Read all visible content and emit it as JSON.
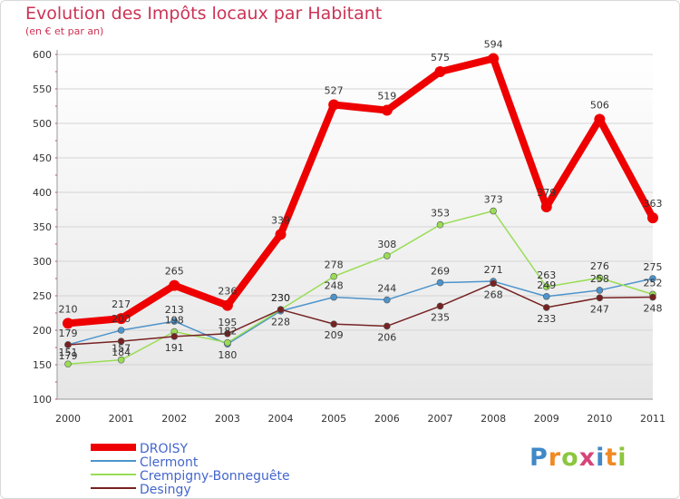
{
  "header": {
    "title": "Evolution des Impôts locaux par Habitant",
    "subtitle": "(en € et par an)"
  },
  "logo": {
    "text": "Proxiti"
  },
  "chart_data": {
    "type": "line",
    "title": "Evolution des Impôts locaux par Habitant",
    "subtitle": "(en € et par an)",
    "xlabel": "",
    "ylabel": "",
    "ylim": [
      100,
      600
    ],
    "yticks": [
      100,
      150,
      200,
      250,
      300,
      350,
      400,
      450,
      500,
      550,
      600
    ],
    "grid": true,
    "legend_position": "bottom-left",
    "categories": [
      "2000",
      "2001",
      "2002",
      "2003",
      "2004",
      "2005",
      "2006",
      "2007",
      "2008",
      "2009",
      "2010",
      "2011"
    ],
    "series": [
      {
        "name": "DROISY",
        "color": "#ee0000",
        "values": [
          210,
          217,
          265,
          236,
          339,
          527,
          519,
          575,
          594,
          379,
          506,
          363
        ]
      },
      {
        "name": "Clermont",
        "color": "#4d94cc",
        "values": [
          179,
          200,
          213,
          180,
          228,
          248,
          244,
          269,
          271,
          249,
          258,
          275
        ]
      },
      {
        "name": "Crempigny-Bonneguête",
        "color": "#99dd55",
        "values": [
          151,
          157,
          198,
          182,
          230,
          278,
          308,
          353,
          373,
          263,
          276,
          252
        ]
      },
      {
        "name": "Desingy",
        "color": "#772222",
        "values": [
          179,
          184,
          191,
          195,
          230,
          209,
          206,
          235,
          268,
          233,
          247,
          248
        ]
      }
    ]
  }
}
